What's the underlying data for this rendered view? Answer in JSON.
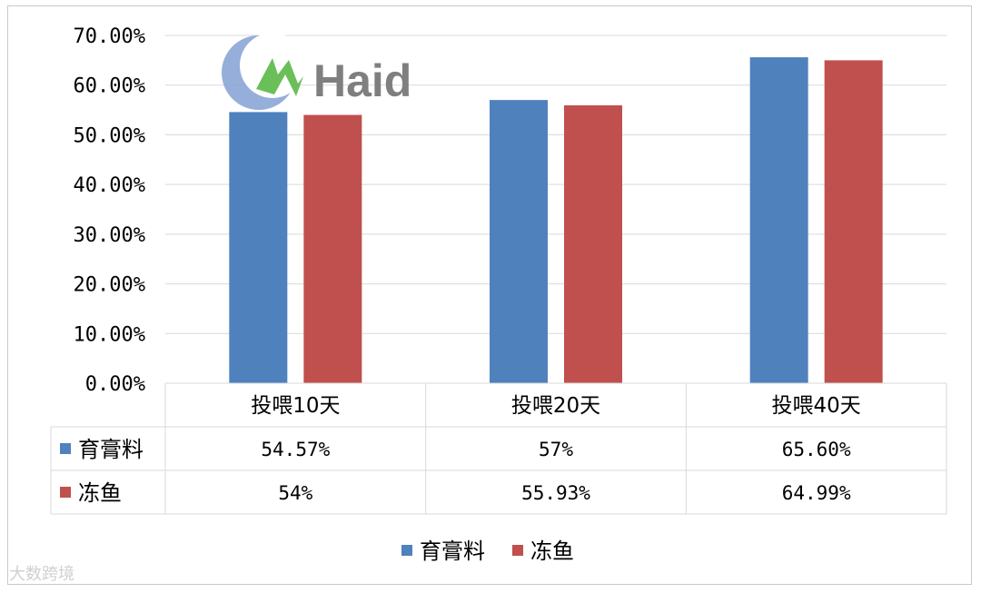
{
  "colors": {
    "series_1": "#4f81bd",
    "series_2": "#c0504d",
    "grid": "#d9d9d9"
  },
  "logo": {
    "text": "Haid"
  },
  "watermark": "大数跨境",
  "chart_data": {
    "type": "bar",
    "categories": [
      "投喂10天",
      "投喂20天",
      "投喂40天"
    ],
    "series": [
      {
        "name": "育膏料",
        "values": [
          54.57,
          57,
          65.6
        ]
      },
      {
        "name": "冻鱼",
        "values": [
          54,
          55.93,
          64.99
        ]
      }
    ],
    "ylim": [
      0,
      70
    ],
    "yticks": [
      "0.00%",
      "10.00%",
      "20.00%",
      "30.00%",
      "40.00%",
      "50.00%",
      "60.00%",
      "70.00%"
    ],
    "data_table": [
      [
        "54.57%",
        "57%",
        "65.60%"
      ],
      [
        "54%",
        "55.93%",
        "64.99%"
      ]
    ],
    "grid": true,
    "legend": "bottom"
  }
}
